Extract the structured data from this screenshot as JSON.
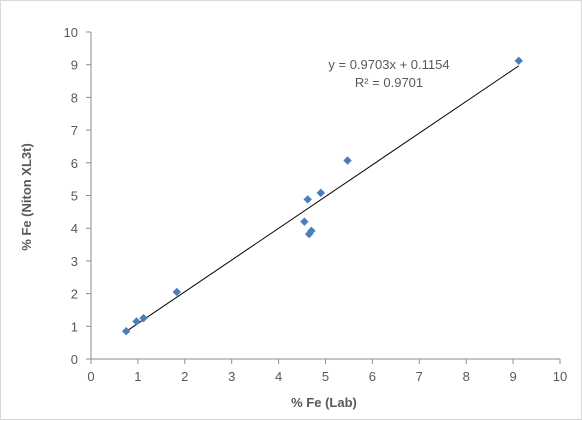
{
  "chart_data": {
    "type": "scatter",
    "xlabel": "% Fe (Lab)",
    "ylabel": "% Fe (Niton XL3t)",
    "xlim": [
      0,
      10
    ],
    "ylim": [
      0,
      10
    ],
    "x_ticks": [
      "0",
      "1",
      "2",
      "3",
      "4",
      "5",
      "6",
      "7",
      "8",
      "9",
      "10"
    ],
    "y_ticks": [
      "0",
      "1",
      "2",
      "3",
      "4",
      "5",
      "6",
      "7",
      "8",
      "9",
      "10"
    ],
    "grid": false,
    "marker_color": "#4a7ebb",
    "line_color": "#000000",
    "points": [
      {
        "x": 0.75,
        "y": 0.85
      },
      {
        "x": 0.97,
        "y": 1.15
      },
      {
        "x": 1.12,
        "y": 1.25
      },
      {
        "x": 1.83,
        "y": 2.05
      },
      {
        "x": 4.55,
        "y": 4.2
      },
      {
        "x": 4.62,
        "y": 4.88
      },
      {
        "x": 4.65,
        "y": 3.82
      },
      {
        "x": 4.7,
        "y": 3.92
      },
      {
        "x": 4.9,
        "y": 5.08
      },
      {
        "x": 5.47,
        "y": 6.07
      },
      {
        "x": 9.12,
        "y": 9.12
      }
    ],
    "trendline": {
      "slope": 0.9703,
      "intercept": 0.1154,
      "x_range": [
        0.75,
        9.12
      ],
      "equation": "y = 0.9703x + 0.1154",
      "r_squared": "R² = 0.9701"
    }
  }
}
